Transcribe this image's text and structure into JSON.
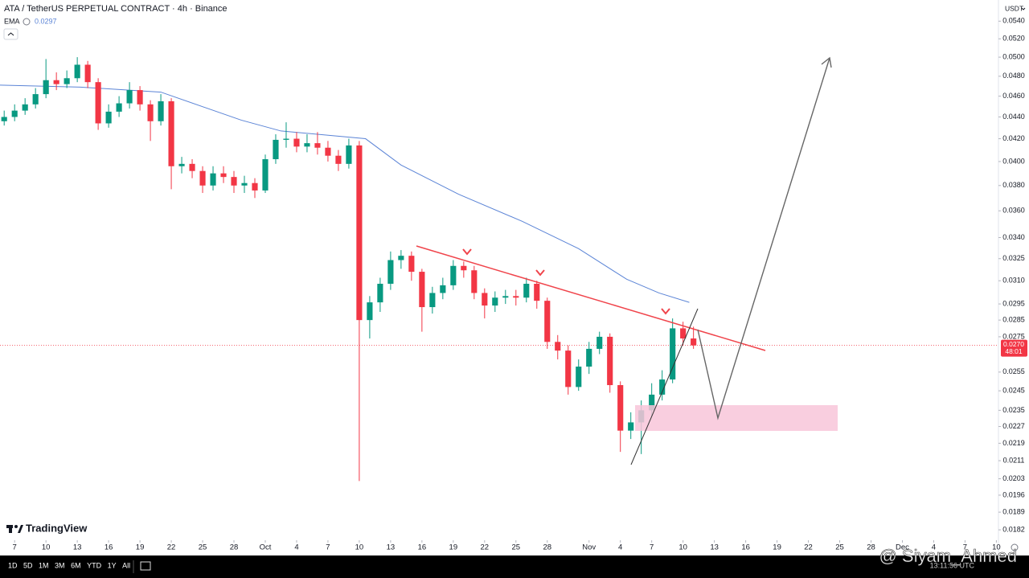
{
  "chart_data": {
    "type": "candlestick",
    "title": "ATA / TetherUS PERPETUAL CONTRACT · 4h · Binance",
    "currency": "USDT",
    "x": [
      6,
      7,
      8,
      9,
      10,
      11,
      12,
      13,
      14,
      15,
      16,
      17,
      18,
      19,
      20,
      21,
      22,
      23,
      24,
      25,
      26,
      27,
      28,
      29,
      30,
      31,
      32,
      33,
      34,
      35,
      36,
      37,
      38,
      39,
      40,
      41,
      42,
      43,
      44,
      45,
      46,
      47,
      48,
      49,
      50,
      51,
      52,
      53,
      54,
      55,
      56,
      57,
      58,
      59,
      60,
      61,
      62,
      63,
      64,
      65,
      66,
      67,
      68,
      69,
      70,
      71,
      72
    ],
    "open": [
      0.0436,
      0.044,
      0.0446,
      0.0452,
      0.0462,
      0.0476,
      0.0472,
      0.0478,
      0.0492,
      0.0474,
      0.0434,
      0.0445,
      0.0453,
      0.0466,
      0.0452,
      0.0436,
      0.0455,
      0.0396,
      0.0398,
      0.0392,
      0.038,
      0.039,
      0.0387,
      0.038,
      0.0382,
      0.0376,
      0.0402,
      0.0419,
      0.042,
      0.0413,
      0.0416,
      0.0412,
      0.0405,
      0.0398,
      0.0414,
      0.0285,
      0.0296,
      0.0308,
      0.0324,
      0.0327,
      0.0316,
      0.0293,
      0.0302,
      0.0307,
      0.032,
      0.0317,
      0.0302,
      0.0294,
      0.0299,
      0.03,
      0.0299,
      0.0308,
      0.0297,
      0.0272,
      0.0267,
      0.0247,
      0.0258,
      0.0268,
      0.0275,
      0.0248,
      0.0225,
      0.0229,
      0.0235,
      0.0243,
      0.0251,
      0.028,
      0.0274
    ],
    "high": [
      0.0446,
      0.0452,
      0.0458,
      0.0468,
      0.0498,
      0.0484,
      0.0486,
      0.05,
      0.0496,
      0.0478,
      0.0452,
      0.046,
      0.0474,
      0.047,
      0.0456,
      0.0462,
      0.0458,
      0.0404,
      0.0402,
      0.0396,
      0.0396,
      0.0396,
      0.0392,
      0.0388,
      0.0386,
      0.0406,
      0.0424,
      0.0435,
      0.0426,
      0.0424,
      0.0426,
      0.0418,
      0.041,
      0.042,
      0.0418,
      0.03,
      0.0312,
      0.033,
      0.0331,
      0.033,
      0.0318,
      0.0306,
      0.0312,
      0.0324,
      0.0323,
      0.032,
      0.0305,
      0.0303,
      0.0304,
      0.0304,
      0.0312,
      0.031,
      0.0299,
      0.0276,
      0.027,
      0.0262,
      0.0272,
      0.0278,
      0.0277,
      0.025,
      0.0234,
      0.024,
      0.0249,
      0.0256,
      0.0286,
      0.0284,
      0.0281
    ],
    "low": [
      0.0432,
      0.0436,
      0.0442,
      0.0448,
      0.0458,
      0.0466,
      0.0468,
      0.0474,
      0.0468,
      0.0428,
      0.043,
      0.044,
      0.0448,
      0.0446,
      0.0418,
      0.0432,
      0.0377,
      0.039,
      0.0386,
      0.0374,
      0.0376,
      0.0382,
      0.0374,
      0.0374,
      0.037,
      0.0374,
      0.0398,
      0.0412,
      0.0408,
      0.0408,
      0.0406,
      0.04,
      0.0392,
      0.0394,
      0.0202,
      0.0274,
      0.029,
      0.0304,
      0.0318,
      0.031,
      0.0278,
      0.0289,
      0.0298,
      0.0304,
      0.0312,
      0.0298,
      0.0286,
      0.029,
      0.0295,
      0.0294,
      0.0296,
      0.0292,
      0.0268,
      0.0262,
      0.0243,
      0.0245,
      0.0254,
      0.0265,
      0.0244,
      0.0215,
      0.0221,
      0.0214,
      0.0232,
      0.024,
      0.0249,
      0.027,
      0.0268
    ],
    "close": [
      0.044,
      0.0446,
      0.0452,
      0.0462,
      0.0476,
      0.0472,
      0.0478,
      0.0492,
      0.0474,
      0.0434,
      0.0445,
      0.0453,
      0.0466,
      0.0452,
      0.0436,
      0.0455,
      0.0396,
      0.0398,
      0.0392,
      0.038,
      0.039,
      0.0387,
      0.038,
      0.0382,
      0.0376,
      0.0402,
      0.0419,
      0.042,
      0.0413,
      0.0416,
      0.0412,
      0.0405,
      0.0398,
      0.0414,
      0.0285,
      0.0296,
      0.0308,
      0.0324,
      0.0327,
      0.0316,
      0.0293,
      0.0302,
      0.0307,
      0.032,
      0.0317,
      0.0302,
      0.0294,
      0.0299,
      0.03,
      0.0299,
      0.0308,
      0.0297,
      0.0272,
      0.0267,
      0.0247,
      0.0258,
      0.0268,
      0.0275,
      0.0248,
      0.0225,
      0.0229,
      0.0235,
      0.0243,
      0.0251,
      0.028,
      0.0274,
      0.027
    ],
    "up_color": "#089981",
    "down_color": "#f23645",
    "ema": {
      "name": "EMA",
      "last_value": 0.0297,
      "color": "#5b84d6",
      "x": [
        5.6,
        13.3,
        21,
        28.7,
        32.5,
        40.6,
        44,
        49.5,
        55.6,
        61,
        65.6,
        68.7,
        71.6
      ],
      "values": [
        0.0471,
        0.0469,
        0.0464,
        0.0437,
        0.0427,
        0.042,
        0.0397,
        0.0373,
        0.0352,
        0.0332,
        0.0311,
        0.0302,
        0.0296
      ]
    },
    "current_price": {
      "value": 0.027,
      "label": "0.0270"
    },
    "countdown": "48:01",
    "log_scale": true,
    "grid": false,
    "xlim": [
      5.6,
      101.2
    ],
    "ylim": [
      0.0178,
      0.0565
    ],
    "yticks": [
      {
        "value": 0.054,
        "label": "0.0540"
      },
      {
        "value": 0.052,
        "label": "0.0520"
      },
      {
        "value": 0.05,
        "label": "0.0500"
      },
      {
        "value": 0.048,
        "label": "0.0480"
      },
      {
        "value": 0.046,
        "label": "0.0460"
      },
      {
        "value": 0.044,
        "label": "0.0440"
      },
      {
        "value": 0.042,
        "label": "0.0420"
      },
      {
        "value": 0.04,
        "label": "0.0400"
      },
      {
        "value": 0.038,
        "label": "0.0380"
      },
      {
        "value": 0.036,
        "label": "0.0360"
      },
      {
        "value": 0.034,
        "label": "0.0340"
      },
      {
        "value": 0.0325,
        "label": "0.0325"
      },
      {
        "value": 0.031,
        "label": "0.0310"
      },
      {
        "value": 0.0295,
        "label": "0.0295"
      },
      {
        "value": 0.0285,
        "label": "0.0285"
      },
      {
        "value": 0.0275,
        "label": "0.0275"
      },
      {
        "value": 0.0255,
        "label": "0.0255"
      },
      {
        "value": 0.0245,
        "label": "0.0245"
      },
      {
        "value": 0.0235,
        "label": "0.0235"
      },
      {
        "value": 0.0227,
        "label": "0.0227"
      },
      {
        "value": 0.0219,
        "label": "0.0219"
      },
      {
        "value": 0.0211,
        "label": "0.0211"
      },
      {
        "value": 0.0203,
        "label": "0.0203"
      },
      {
        "value": 0.0196,
        "label": "0.0196"
      },
      {
        "value": 0.0189,
        "label": "0.0189"
      },
      {
        "value": 0.0182,
        "label": "0.0182"
      }
    ],
    "xticks": [
      {
        "value": 7,
        "label": "7"
      },
      {
        "value": 10,
        "label": "10"
      },
      {
        "value": 13,
        "label": "13"
      },
      {
        "value": 16,
        "label": "16"
      },
      {
        "value": 19,
        "label": "19"
      },
      {
        "value": 22,
        "label": "22"
      },
      {
        "value": 25,
        "label": "25"
      },
      {
        "value": 28,
        "label": "28"
      },
      {
        "value": 31,
        "label": "Oct"
      },
      {
        "value": 34,
        "label": "4"
      },
      {
        "value": 37,
        "label": "7"
      },
      {
        "value": 40,
        "label": "10"
      },
      {
        "value": 43,
        "label": "13"
      },
      {
        "value": 46,
        "label": "16"
      },
      {
        "value": 49,
        "label": "19"
      },
      {
        "value": 52,
        "label": "22"
      },
      {
        "value": 55,
        "label": "25"
      },
      {
        "value": 58,
        "label": "28"
      },
      {
        "value": 62,
        "label": "Nov"
      },
      {
        "value": 65,
        "label": "4"
      },
      {
        "value": 68,
        "label": "7"
      },
      {
        "value": 71,
        "label": "10"
      },
      {
        "value": 74,
        "label": "13"
      },
      {
        "value": 77,
        "label": "16"
      },
      {
        "value": 80,
        "label": "19"
      },
      {
        "value": 83,
        "label": "22"
      },
      {
        "value": 86,
        "label": "25"
      },
      {
        "value": 89,
        "label": "28"
      },
      {
        "value": 92,
        "label": "Dec"
      },
      {
        "value": 95,
        "label": "4"
      },
      {
        "value": 98,
        "label": "7"
      },
      {
        "value": 101,
        "label": "10"
      }
    ]
  },
  "branding": {
    "logo": "TradingView",
    "watermark": "@ Siyam_Ahmed",
    "clock": "13:11:56 UTC"
  },
  "toolbar": {
    "ranges": [
      "1D",
      "5D",
      "1M",
      "3M",
      "6M",
      "YTD",
      "1Y",
      "All"
    ]
  }
}
